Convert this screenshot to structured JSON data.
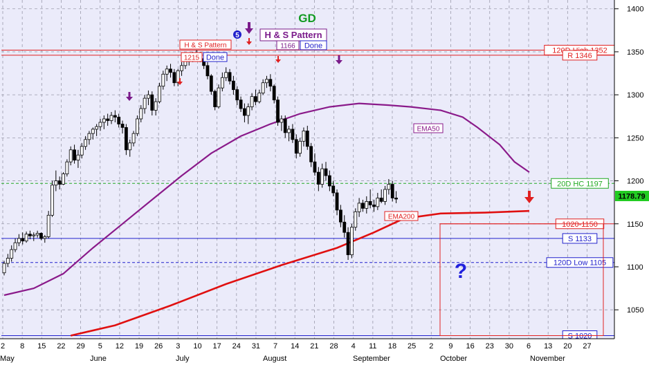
{
  "chart_data": {
    "type": "candlestick",
    "title": "",
    "ylim": [
      1020,
      1405
    ],
    "yticks": [
      1050,
      1100,
      1150,
      1200,
      1250,
      1300,
      1350,
      1400
    ],
    "x_day_labels": [
      "2",
      "8",
      "15",
      "22",
      "29",
      "5",
      "12",
      "19",
      "26",
      "3",
      "10",
      "17",
      "24",
      "31",
      "7",
      "14",
      "21",
      "28",
      "4",
      "11",
      "18",
      "25",
      "2",
      "9",
      "16",
      "23",
      "30",
      "6",
      "13",
      "20",
      "27"
    ],
    "x_month_labels": [
      "May",
      "June",
      "July",
      "August",
      "September",
      "October",
      "November"
    ],
    "last_price": "1178.79",
    "candles": [
      {
        "o": 1093,
        "h": 1107,
        "l": 1090,
        "c": 1104
      },
      {
        "o": 1104,
        "h": 1115,
        "l": 1100,
        "c": 1110
      },
      {
        "o": 1110,
        "h": 1125,
        "l": 1106,
        "c": 1120
      },
      {
        "o": 1120,
        "h": 1133,
        "l": 1117,
        "c": 1128
      },
      {
        "o": 1128,
        "h": 1138,
        "l": 1124,
        "c": 1133
      },
      {
        "o": 1133,
        "h": 1140,
        "l": 1126,
        "c": 1130
      },
      {
        "o": 1130,
        "h": 1141,
        "l": 1128,
        "c": 1138
      },
      {
        "o": 1138,
        "h": 1142,
        "l": 1132,
        "c": 1136
      },
      {
        "o": 1136,
        "h": 1140,
        "l": 1130,
        "c": 1137
      },
      {
        "o": 1137,
        "h": 1142,
        "l": 1134,
        "c": 1139
      },
      {
        "o": 1139,
        "h": 1140,
        "l": 1131,
        "c": 1133
      },
      {
        "o": 1133,
        "h": 1137,
        "l": 1128,
        "c": 1135
      },
      {
        "o": 1135,
        "h": 1165,
        "l": 1133,
        "c": 1160
      },
      {
        "o": 1160,
        "h": 1200,
        "l": 1158,
        "c": 1195
      },
      {
        "o": 1195,
        "h": 1212,
        "l": 1188,
        "c": 1200
      },
      {
        "o": 1200,
        "h": 1205,
        "l": 1190,
        "c": 1196
      },
      {
        "o": 1196,
        "h": 1210,
        "l": 1195,
        "c": 1208
      },
      {
        "o": 1208,
        "h": 1225,
        "l": 1205,
        "c": 1222
      },
      {
        "o": 1222,
        "h": 1240,
        "l": 1218,
        "c": 1236
      },
      {
        "o": 1236,
        "h": 1242,
        "l": 1220,
        "c": 1224
      },
      {
        "o": 1224,
        "h": 1236,
        "l": 1215,
        "c": 1230
      },
      {
        "o": 1230,
        "h": 1244,
        "l": 1226,
        "c": 1240
      },
      {
        "o": 1240,
        "h": 1252,
        "l": 1236,
        "c": 1248
      },
      {
        "o": 1248,
        "h": 1258,
        "l": 1242,
        "c": 1255
      },
      {
        "o": 1255,
        "h": 1262,
        "l": 1248,
        "c": 1260
      },
      {
        "o": 1260,
        "h": 1266,
        "l": 1252,
        "c": 1263
      },
      {
        "o": 1263,
        "h": 1272,
        "l": 1258,
        "c": 1268
      },
      {
        "o": 1268,
        "h": 1276,
        "l": 1260,
        "c": 1272
      },
      {
        "o": 1272,
        "h": 1278,
        "l": 1264,
        "c": 1270
      },
      {
        "o": 1270,
        "h": 1280,
        "l": 1266,
        "c": 1276
      },
      {
        "o": 1276,
        "h": 1282,
        "l": 1268,
        "c": 1274
      },
      {
        "o": 1274,
        "h": 1278,
        "l": 1262,
        "c": 1266
      },
      {
        "o": 1266,
        "h": 1270,
        "l": 1255,
        "c": 1262
      },
      {
        "o": 1262,
        "h": 1266,
        "l": 1230,
        "c": 1236
      },
      {
        "o": 1236,
        "h": 1248,
        "l": 1228,
        "c": 1244
      },
      {
        "o": 1244,
        "h": 1258,
        "l": 1240,
        "c": 1255
      },
      {
        "o": 1255,
        "h": 1276,
        "l": 1252,
        "c": 1272
      },
      {
        "o": 1272,
        "h": 1288,
        "l": 1268,
        "c": 1284
      },
      {
        "o": 1284,
        "h": 1300,
        "l": 1278,
        "c": 1296
      },
      {
        "o": 1296,
        "h": 1305,
        "l": 1288,
        "c": 1300
      },
      {
        "o": 1300,
        "h": 1304,
        "l": 1276,
        "c": 1282
      },
      {
        "o": 1282,
        "h": 1296,
        "l": 1276,
        "c": 1292
      },
      {
        "o": 1292,
        "h": 1314,
        "l": 1290,
        "c": 1310
      },
      {
        "o": 1310,
        "h": 1328,
        "l": 1306,
        "c": 1324
      },
      {
        "o": 1324,
        "h": 1334,
        "l": 1316,
        "c": 1330
      },
      {
        "o": 1330,
        "h": 1336,
        "l": 1320,
        "c": 1326
      },
      {
        "o": 1326,
        "h": 1330,
        "l": 1310,
        "c": 1314
      },
      {
        "o": 1314,
        "h": 1330,
        "l": 1310,
        "c": 1328
      },
      {
        "o": 1328,
        "h": 1338,
        "l": 1322,
        "c": 1334
      },
      {
        "o": 1334,
        "h": 1344,
        "l": 1330,
        "c": 1340
      },
      {
        "o": 1340,
        "h": 1348,
        "l": 1334,
        "c": 1344
      },
      {
        "o": 1344,
        "h": 1350,
        "l": 1338,
        "c": 1346
      },
      {
        "o": 1346,
        "h": 1352,
        "l": 1340,
        "c": 1348
      },
      {
        "o": 1348,
        "h": 1350,
        "l": 1338,
        "c": 1342
      },
      {
        "o": 1342,
        "h": 1346,
        "l": 1330,
        "c": 1334
      },
      {
        "o": 1334,
        "h": 1338,
        "l": 1318,
        "c": 1322
      },
      {
        "o": 1322,
        "h": 1324,
        "l": 1300,
        "c": 1304
      },
      {
        "o": 1304,
        "h": 1306,
        "l": 1282,
        "c": 1286
      },
      {
        "o": 1286,
        "h": 1312,
        "l": 1284,
        "c": 1308
      },
      {
        "o": 1308,
        "h": 1326,
        "l": 1304,
        "c": 1320
      },
      {
        "o": 1320,
        "h": 1332,
        "l": 1316,
        "c": 1326
      },
      {
        "o": 1326,
        "h": 1330,
        "l": 1312,
        "c": 1316
      },
      {
        "o": 1316,
        "h": 1322,
        "l": 1300,
        "c": 1306
      },
      {
        "o": 1306,
        "h": 1310,
        "l": 1288,
        "c": 1294
      },
      {
        "o": 1294,
        "h": 1298,
        "l": 1280,
        "c": 1284
      },
      {
        "o": 1284,
        "h": 1290,
        "l": 1268,
        "c": 1276
      },
      {
        "o": 1276,
        "h": 1290,
        "l": 1266,
        "c": 1286
      },
      {
        "o": 1286,
        "h": 1302,
        "l": 1282,
        "c": 1298
      },
      {
        "o": 1298,
        "h": 1306,
        "l": 1288,
        "c": 1292
      },
      {
        "o": 1292,
        "h": 1306,
        "l": 1290,
        "c": 1302
      },
      {
        "o": 1302,
        "h": 1318,
        "l": 1300,
        "c": 1314
      },
      {
        "o": 1314,
        "h": 1322,
        "l": 1308,
        "c": 1318
      },
      {
        "o": 1318,
        "h": 1324,
        "l": 1304,
        "c": 1310
      },
      {
        "o": 1310,
        "h": 1312,
        "l": 1290,
        "c": 1294
      },
      {
        "o": 1294,
        "h": 1298,
        "l": 1264,
        "c": 1268
      },
      {
        "o": 1268,
        "h": 1276,
        "l": 1258,
        "c": 1272
      },
      {
        "o": 1272,
        "h": 1276,
        "l": 1250,
        "c": 1256
      },
      {
        "o": 1256,
        "h": 1264,
        "l": 1246,
        "c": 1260
      },
      {
        "o": 1260,
        "h": 1266,
        "l": 1244,
        "c": 1248
      },
      {
        "o": 1248,
        "h": 1254,
        "l": 1226,
        "c": 1232
      },
      {
        "o": 1232,
        "h": 1250,
        "l": 1228,
        "c": 1246
      },
      {
        "o": 1246,
        "h": 1262,
        "l": 1240,
        "c": 1258
      },
      {
        "o": 1258,
        "h": 1264,
        "l": 1236,
        "c": 1240
      },
      {
        "o": 1240,
        "h": 1244,
        "l": 1216,
        "c": 1222
      },
      {
        "o": 1222,
        "h": 1232,
        "l": 1206,
        "c": 1210
      },
      {
        "o": 1210,
        "h": 1216,
        "l": 1188,
        "c": 1196
      },
      {
        "o": 1196,
        "h": 1220,
        "l": 1192,
        "c": 1214
      },
      {
        "o": 1214,
        "h": 1222,
        "l": 1200,
        "c": 1206
      },
      {
        "o": 1206,
        "h": 1212,
        "l": 1188,
        "c": 1194
      },
      {
        "o": 1194,
        "h": 1200,
        "l": 1182,
        "c": 1186
      },
      {
        "o": 1186,
        "h": 1190,
        "l": 1160,
        "c": 1166
      },
      {
        "o": 1166,
        "h": 1172,
        "l": 1146,
        "c": 1152
      },
      {
        "o": 1152,
        "h": 1160,
        "l": 1134,
        "c": 1140
      },
      {
        "o": 1140,
        "h": 1146,
        "l": 1108,
        "c": 1114
      },
      {
        "o": 1114,
        "h": 1150,
        "l": 1110,
        "c": 1146
      },
      {
        "o": 1146,
        "h": 1168,
        "l": 1142,
        "c": 1164
      },
      {
        "o": 1164,
        "h": 1180,
        "l": 1158,
        "c": 1174
      },
      {
        "o": 1174,
        "h": 1178,
        "l": 1164,
        "c": 1168
      },
      {
        "o": 1168,
        "h": 1182,
        "l": 1162,
        "c": 1176
      },
      {
        "o": 1176,
        "h": 1190,
        "l": 1168,
        "c": 1172
      },
      {
        "o": 1172,
        "h": 1178,
        "l": 1164,
        "c": 1170
      },
      {
        "o": 1170,
        "h": 1186,
        "l": 1166,
        "c": 1180
      },
      {
        "o": 1180,
        "h": 1190,
        "l": 1174,
        "c": 1176
      },
      {
        "o": 1176,
        "h": 1194,
        "l": 1172,
        "c": 1190
      },
      {
        "o": 1190,
        "h": 1202,
        "l": 1184,
        "c": 1196
      },
      {
        "o": 1196,
        "h": 1200,
        "l": 1176,
        "c": 1180
      },
      {
        "o": 1180,
        "h": 1188,
        "l": 1174,
        "c": 1178.79
      }
    ],
    "ema50": [
      [
        0,
        1067
      ],
      [
        8,
        1075
      ],
      [
        16,
        1092
      ],
      [
        24,
        1122
      ],
      [
        32,
        1150
      ],
      [
        40,
        1178
      ],
      [
        48,
        1206
      ],
      [
        56,
        1232
      ],
      [
        64,
        1252
      ],
      [
        72,
        1266
      ],
      [
        80,
        1278
      ],
      [
        88,
        1286
      ],
      [
        96,
        1290
      ],
      [
        104,
        1288
      ],
      [
        110,
        1286
      ],
      [
        118,
        1282
      ],
      [
        124,
        1274
      ],
      [
        128,
        1262
      ],
      [
        134,
        1242
      ],
      [
        138,
        1222
      ],
      [
        142,
        1210
      ]
    ],
    "ema200": [
      [
        18,
        1020
      ],
      [
        30,
        1032
      ],
      [
        45,
        1055
      ],
      [
        60,
        1080
      ],
      [
        75,
        1102
      ],
      [
        90,
        1122
      ],
      [
        100,
        1140
      ],
      [
        108,
        1156
      ],
      [
        118,
        1162
      ],
      [
        130,
        1163
      ],
      [
        142,
        1165
      ]
    ],
    "horizontal_levels": [
      {
        "label": "120D High 1352",
        "value": 1352,
        "style": "solid",
        "color": "#e02020"
      },
      {
        "label": "R 1346",
        "value": 1346,
        "style": "solid",
        "color": "#e02020"
      },
      {
        "label": "20D HC 1197",
        "value": 1197,
        "style": "dashed",
        "color": "#22aa22"
      },
      {
        "label": "1020-1150",
        "value": 1150,
        "style": "solid",
        "color": "#e02020"
      },
      {
        "label": "S 1133",
        "value": 1133,
        "style": "solid",
        "color": "#2020cc"
      },
      {
        "label": "120D Low 1105",
        "value": 1105,
        "style": "dashed",
        "color": "#2020cc"
      },
      {
        "label": "S 1020",
        "value": 1020,
        "style": "solid",
        "color": "#2020cc"
      }
    ],
    "annotations": {
      "gd": "GD",
      "hs_pattern_small": "H & S Pattern",
      "hs_pattern_big": "H & S Pattern",
      "l1215": "1215",
      "done1": "Done",
      "l1166": "1166",
      "done2": "Done",
      "ema50_label": "EMA50",
      "ema200_label": "EMA200",
      "question": "?",
      "five": "5"
    },
    "colors": {
      "background": "#ebebfa",
      "ema50": "#8a1a8a",
      "ema200": "#e01010",
      "candle_up": "#ffffff",
      "candle_down": "#000000",
      "grid": "#9a9aaa",
      "purple": "#7a1a8a"
    }
  }
}
